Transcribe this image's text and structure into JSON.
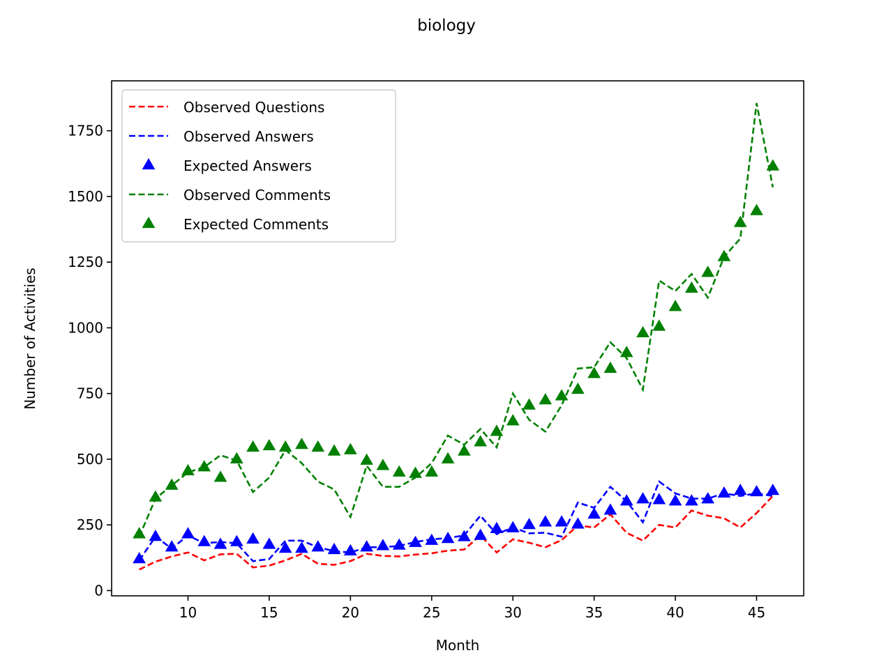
{
  "chart_data": {
    "type": "line",
    "title": "biology",
    "xlabel": "Month",
    "ylabel": "Number of Activities",
    "xlim": [
      5.3,
      47.9
    ],
    "ylim": [
      -20,
      1940
    ],
    "xticks": [
      "10",
      "15",
      "20",
      "25",
      "30",
      "35",
      "40",
      "45"
    ],
    "yticks": [
      "0",
      "250",
      "500",
      "750",
      "1000",
      "1250",
      "1500",
      "1750"
    ],
    "grid": false,
    "legend_position": "top-left",
    "x": [
      7,
      8,
      9,
      10,
      11,
      12,
      13,
      14,
      15,
      16,
      17,
      18,
      19,
      20,
      21,
      22,
      23,
      24,
      25,
      26,
      27,
      28,
      29,
      30,
      31,
      32,
      33,
      34,
      35,
      36,
      37,
      38,
      39,
      40,
      41,
      42,
      43,
      44,
      45,
      46
    ],
    "series": [
      {
        "name": "Observed Questions",
        "style": "dashed-line",
        "color": "#ff0000",
        "values": [
          80,
          110,
          130,
          145,
          115,
          138,
          140,
          88,
          95,
          115,
          140,
          102,
          98,
          112,
          140,
          132,
          130,
          137,
          142,
          152,
          156,
          210,
          145,
          195,
          182,
          165,
          192,
          248,
          240,
          290,
          220,
          190,
          250,
          240,
          305,
          285,
          275,
          240,
          295,
          360
        ]
      },
      {
        "name": "Observed Answers",
        "style": "dashed-line",
        "color": "#0000ff",
        "values": [
          115,
          205,
          160,
          210,
          180,
          185,
          180,
          112,
          120,
          190,
          190,
          165,
          150,
          145,
          165,
          165,
          170,
          185,
          195,
          200,
          210,
          285,
          215,
          240,
          218,
          220,
          205,
          335,
          315,
          395,
          340,
          260,
          415,
          370,
          350,
          350,
          370,
          360,
          370,
          360
        ]
      },
      {
        "name": "Expected Answers",
        "style": "triangle-markers",
        "color": "#0000ff",
        "values": [
          120,
          205,
          165,
          215,
          185,
          175,
          185,
          195,
          175,
          160,
          160,
          165,
          155,
          150,
          165,
          170,
          172,
          182,
          190,
          197,
          204,
          209,
          235,
          238,
          250,
          260,
          260,
          252,
          290,
          305,
          340,
          348,
          345,
          340,
          340,
          348,
          370,
          380,
          375,
          380
        ]
      },
      {
        "name": "Observed Comments",
        "style": "dashed-line",
        "color": "#008000",
        "values": [
          205,
          350,
          400,
          450,
          470,
          515,
          495,
          375,
          430,
          535,
          485,
          415,
          385,
          280,
          475,
          395,
          395,
          430,
          485,
          590,
          555,
          615,
          545,
          750,
          650,
          605,
          705,
          845,
          850,
          945,
          885,
          765,
          1180,
          1140,
          1205,
          1115,
          1270,
          1340,
          1855,
          1535
        ]
      },
      {
        "name": "Expected Comments",
        "style": "triangle-markers",
        "color": "#008000",
        "values": [
          215,
          355,
          400,
          455,
          470,
          430,
          500,
          545,
          550,
          545,
          555,
          545,
          530,
          535,
          495,
          475,
          450,
          445,
          450,
          500,
          530,
          565,
          605,
          645,
          705,
          725,
          740,
          765,
          825,
          845,
          905,
          980,
          1005,
          1080,
          1150,
          1210,
          1270,
          1400,
          1445,
          1615
        ]
      }
    ]
  }
}
